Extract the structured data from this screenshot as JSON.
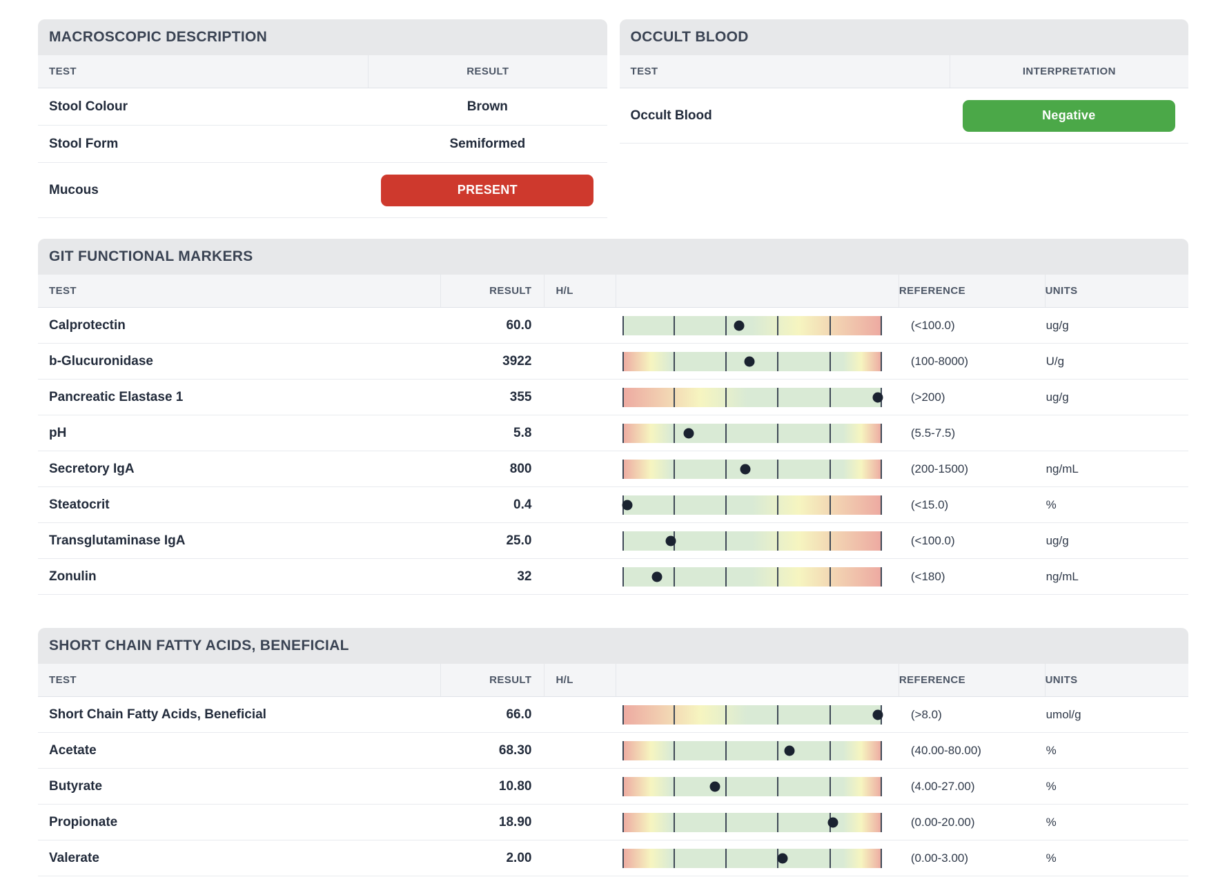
{
  "colors": {
    "badge_red": "#ce392d",
    "badge_green": "#4ba848",
    "bar_green": "#d9ead5",
    "bar_yellow": "#f6f5c0",
    "bar_red": "#eda9a1",
    "marker_dot": "#1a2230"
  },
  "macroscopic": {
    "title": "MACROSCOPIC DESCRIPTION",
    "columns": [
      "TEST",
      "RESULT"
    ],
    "rows": [
      {
        "test": "Stool Colour",
        "result": "Brown",
        "badge": false,
        "badge_color": ""
      },
      {
        "test": "Stool Form",
        "result": "Semiformed",
        "badge": false,
        "badge_color": ""
      },
      {
        "test": "Mucous",
        "result": "PRESENT",
        "badge": true,
        "badge_color": "#ce392d"
      }
    ]
  },
  "occult_blood": {
    "title": "OCCULT BLOOD",
    "columns": [
      "TEST",
      "INTERPRETATION"
    ],
    "rows": [
      {
        "test": "Occult Blood",
        "result": "Negative",
        "badge": true,
        "badge_color": "#4ba848"
      }
    ]
  },
  "marker_sections": [
    {
      "title": "GIT FUNCTIONAL MARKERS",
      "columns": [
        "TEST",
        "RESULT",
        "H/L",
        "REFERENCE",
        "UNITS"
      ],
      "rows": [
        {
          "test": "Calprotectin",
          "result": "60.0",
          "hl": "",
          "bar": "below",
          "pos": 45.0,
          "reference": "(<100.0)",
          "units": "ug/g"
        },
        {
          "test": "b-Glucuronidase",
          "result": "3922",
          "hl": "",
          "bar": "range",
          "pos": 48.9,
          "reference": "(100-8000)",
          "units": "U/g"
        },
        {
          "test": "Pancreatic Elastase 1",
          "result": "355",
          "hl": "",
          "bar": "above",
          "pos": 98.5,
          "reference": "(>200)",
          "units": "ug/g"
        },
        {
          "test": "pH",
          "result": "5.8",
          "hl": "",
          "bar": "range",
          "pos": 25.5,
          "reference": "(5.5-7.5)",
          "units": ""
        },
        {
          "test": "Secretory IgA",
          "result": "800",
          "hl": "",
          "bar": "range",
          "pos": 47.3,
          "reference": "(200-1500)",
          "units": "ng/mL"
        },
        {
          "test": "Steatocrit",
          "result": "0.4",
          "hl": "",
          "bar": "below",
          "pos": 2.0,
          "reference": "(<15.0)",
          "units": "%"
        },
        {
          "test": "Transglutaminase IgA",
          "result": "25.0",
          "hl": "",
          "bar": "below",
          "pos": 18.8,
          "reference": "(<100.0)",
          "units": "ug/g"
        },
        {
          "test": "Zonulin",
          "result": "32",
          "hl": "",
          "bar": "below",
          "pos": 13.3,
          "reference": "(<180)",
          "units": "ng/mL"
        }
      ]
    },
    {
      "title": "SHORT CHAIN FATTY ACIDS, BENEFICIAL",
      "columns": [
        "TEST",
        "RESULT",
        "H/L",
        "REFERENCE",
        "UNITS"
      ],
      "rows": [
        {
          "test": "Short Chain Fatty Acids, Beneficial",
          "result": "66.0",
          "hl": "",
          "bar": "above",
          "pos": 98.5,
          "reference": "(>8.0)",
          "units": "umol/g"
        },
        {
          "test": "Acetate",
          "result": "68.30",
          "hl": "",
          "bar": "range",
          "pos": 64.5,
          "reference": "(40.00-80.00)",
          "units": "%"
        },
        {
          "test": "Butyrate",
          "result": "10.80",
          "hl": "",
          "bar": "range",
          "pos": 35.7,
          "reference": "(4.00-27.00)",
          "units": "%"
        },
        {
          "test": "Propionate",
          "result": "18.90",
          "hl": "",
          "bar": "range",
          "pos": 81.2,
          "reference": "(0.00-20.00)",
          "units": "%"
        },
        {
          "test": "Valerate",
          "result": "2.00",
          "hl": "",
          "bar": "range",
          "pos": 61.7,
          "reference": "(0.00-3.00)",
          "units": "%"
        }
      ]
    }
  ]
}
